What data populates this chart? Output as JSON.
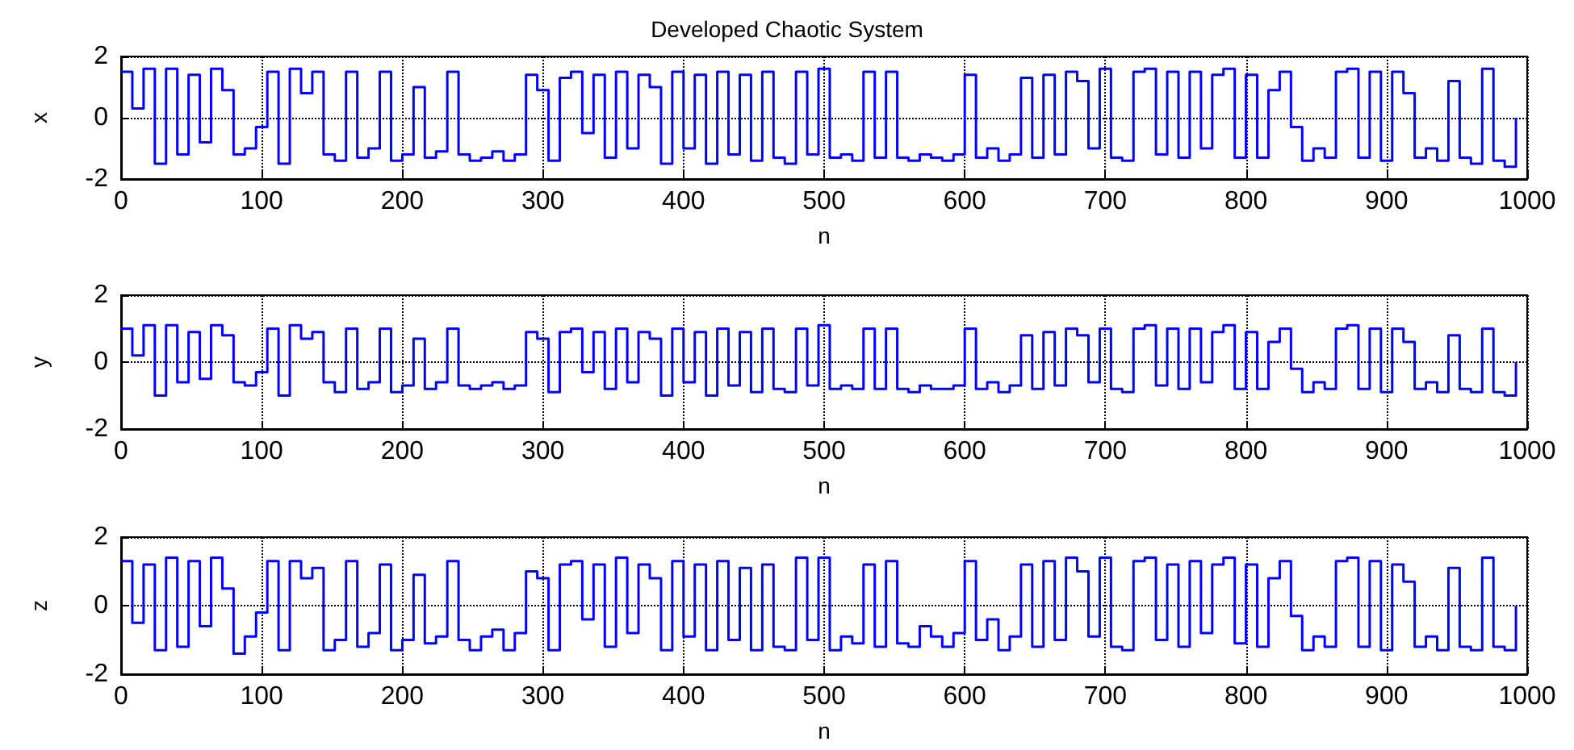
{
  "chart_data": [
    {
      "type": "step",
      "title": "Developed Chaotic System",
      "xlabel": "n",
      "ylabel": "x",
      "color": "#0000ff",
      "grid": true,
      "xlim": [
        0,
        1000
      ],
      "xticks": [
        0,
        100,
        200,
        300,
        400,
        500,
        600,
        700,
        800,
        900,
        1000
      ],
      "ylim": [
        -2,
        2
      ],
      "yticks": [
        -2,
        0,
        2
      ],
      "x": [
        0,
        8,
        16,
        24,
        32,
        40,
        48,
        56,
        64,
        72,
        80,
        88,
        96,
        104,
        112,
        120,
        128,
        136,
        144,
        152,
        160,
        168,
        176,
        184,
        192,
        200,
        208,
        216,
        224,
        232,
        240,
        248,
        256,
        264,
        272,
        280,
        288,
        296,
        304,
        312,
        320,
        328,
        336,
        344,
        352,
        360,
        368,
        376,
        384,
        392,
        400,
        408,
        416,
        424,
        432,
        440,
        448,
        456,
        464,
        472,
        480,
        488,
        496,
        504,
        512,
        520,
        528,
        536,
        544,
        552,
        560,
        568,
        576,
        584,
        592,
        600,
        608,
        616,
        624,
        632,
        640,
        648,
        656,
        664,
        672,
        680,
        688,
        696,
        704,
        712,
        720,
        728,
        736,
        744,
        752,
        760,
        768,
        776,
        784,
        792,
        800,
        808,
        816,
        824,
        832,
        840,
        848,
        856,
        864,
        872,
        880,
        888,
        896,
        904,
        912,
        920,
        928,
        936,
        944,
        952,
        960,
        968,
        976,
        984,
        992
      ],
      "values": [
        1.5,
        0.3,
        1.6,
        -1.5,
        1.6,
        -1.2,
        1.4,
        -0.8,
        1.6,
        0.9,
        -1.2,
        -1.0,
        -0.3,
        1.5,
        -1.5,
        1.6,
        0.8,
        1.5,
        -1.2,
        -1.4,
        1.5,
        -1.3,
        -1.0,
        1.5,
        -1.4,
        -1.2,
        1.0,
        -1.3,
        -1.1,
        1.5,
        -1.2,
        -1.4,
        -1.3,
        -1.1,
        -1.4,
        -1.2,
        1.4,
        0.9,
        -1.4,
        1.3,
        1.5,
        -0.5,
        1.4,
        -1.3,
        1.5,
        -1.0,
        1.4,
        1.0,
        -1.5,
        1.5,
        -1.0,
        1.4,
        -1.5,
        1.5,
        -1.2,
        1.4,
        -1.4,
        1.5,
        -1.3,
        -1.5,
        1.5,
        -1.2,
        1.6,
        -1.3,
        -1.2,
        -1.4,
        1.5,
        -1.3,
        1.5,
        -1.3,
        -1.4,
        -1.2,
        -1.3,
        -1.4,
        -1.2,
        1.4,
        -1.3,
        -1.0,
        -1.4,
        -1.2,
        1.3,
        -1.3,
        1.4,
        -1.2,
        1.5,
        1.2,
        -1.0,
        1.6,
        -1.3,
        -1.4,
        1.5,
        1.6,
        -1.2,
        1.5,
        -1.3,
        1.5,
        -1.0,
        1.4,
        1.6,
        -1.3,
        1.4,
        -1.3,
        0.9,
        1.5,
        -0.3,
        -1.4,
        -1.0,
        -1.3,
        1.5,
        1.6,
        -1.3,
        1.5,
        -1.4,
        1.5,
        0.8,
        -1.3,
        -1.0,
        -1.4,
        1.2,
        -1.3,
        -1.5,
        1.6,
        -1.4,
        -1.6,
        0.0
      ]
    },
    {
      "type": "step",
      "xlabel": "n",
      "ylabel": "y",
      "color": "#0000ff",
      "grid": true,
      "xlim": [
        0,
        1000
      ],
      "xticks": [
        0,
        100,
        200,
        300,
        400,
        500,
        600,
        700,
        800,
        900,
        1000
      ],
      "ylim": [
        -2,
        2
      ],
      "yticks": [
        -2,
        0,
        2
      ],
      "x": [
        0,
        8,
        16,
        24,
        32,
        40,
        48,
        56,
        64,
        72,
        80,
        88,
        96,
        104,
        112,
        120,
        128,
        136,
        144,
        152,
        160,
        168,
        176,
        184,
        192,
        200,
        208,
        216,
        224,
        232,
        240,
        248,
        256,
        264,
        272,
        280,
        288,
        296,
        304,
        312,
        320,
        328,
        336,
        344,
        352,
        360,
        368,
        376,
        384,
        392,
        400,
        408,
        416,
        424,
        432,
        440,
        448,
        456,
        464,
        472,
        480,
        488,
        496,
        504,
        512,
        520,
        528,
        536,
        544,
        552,
        560,
        568,
        576,
        584,
        592,
        600,
        608,
        616,
        624,
        632,
        640,
        648,
        656,
        664,
        672,
        680,
        688,
        696,
        704,
        712,
        720,
        728,
        736,
        744,
        752,
        760,
        768,
        776,
        784,
        792,
        800,
        808,
        816,
        824,
        832,
        840,
        848,
        856,
        864,
        872,
        880,
        888,
        896,
        904,
        912,
        920,
        928,
        936,
        944,
        952,
        960,
        968,
        976,
        984,
        992
      ],
      "values": [
        1.0,
        0.2,
        1.1,
        -1.0,
        1.1,
        -0.6,
        0.9,
        -0.5,
        1.1,
        0.8,
        -0.6,
        -0.7,
        -0.3,
        1.0,
        -1.0,
        1.1,
        0.7,
        0.9,
        -0.6,
        -0.9,
        1.0,
        -0.8,
        -0.6,
        1.0,
        -0.9,
        -0.7,
        0.7,
        -0.8,
        -0.6,
        1.0,
        -0.7,
        -0.8,
        -0.7,
        -0.6,
        -0.8,
        -0.7,
        0.9,
        0.7,
        -0.9,
        0.9,
        1.0,
        -0.3,
        0.9,
        -0.8,
        1.0,
        -0.6,
        0.9,
        0.7,
        -1.0,
        1.0,
        -0.6,
        0.9,
        -1.0,
        1.0,
        -0.7,
        0.9,
        -0.9,
        1.0,
        -0.8,
        -0.9,
        1.0,
        -0.7,
        1.1,
        -0.8,
        -0.7,
        -0.8,
        1.0,
        -0.8,
        1.0,
        -0.8,
        -0.9,
        -0.7,
        -0.8,
        -0.8,
        -0.7,
        1.0,
        -0.8,
        -0.6,
        -0.9,
        -0.7,
        0.8,
        -0.8,
        0.9,
        -0.7,
        1.0,
        0.8,
        -0.6,
        1.0,
        -0.8,
        -0.9,
        1.0,
        1.1,
        -0.7,
        1.0,
        -0.8,
        1.0,
        -0.6,
        0.9,
        1.1,
        -0.8,
        0.9,
        -0.8,
        0.6,
        1.0,
        -0.2,
        -0.9,
        -0.6,
        -0.8,
        1.0,
        1.1,
        -0.8,
        1.0,
        -0.9,
        1.0,
        0.6,
        -0.8,
        -0.6,
        -0.9,
        0.8,
        -0.8,
        -0.9,
        1.0,
        -0.9,
        -1.0,
        0.0
      ]
    },
    {
      "type": "step",
      "xlabel": "n",
      "ylabel": "z",
      "color": "#0000ff",
      "grid": true,
      "xlim": [
        0,
        1000
      ],
      "xticks": [
        0,
        100,
        200,
        300,
        400,
        500,
        600,
        700,
        800,
        900,
        1000
      ],
      "ylim": [
        -2,
        2
      ],
      "yticks": [
        -2,
        0,
        2
      ],
      "x": [
        0,
        8,
        16,
        24,
        32,
        40,
        48,
        56,
        64,
        72,
        80,
        88,
        96,
        104,
        112,
        120,
        128,
        136,
        144,
        152,
        160,
        168,
        176,
        184,
        192,
        200,
        208,
        216,
        224,
        232,
        240,
        248,
        256,
        264,
        272,
        280,
        288,
        296,
        304,
        312,
        320,
        328,
        336,
        344,
        352,
        360,
        368,
        376,
        384,
        392,
        400,
        408,
        416,
        424,
        432,
        440,
        448,
        456,
        464,
        472,
        480,
        488,
        496,
        504,
        512,
        520,
        528,
        536,
        544,
        552,
        560,
        568,
        576,
        584,
        592,
        600,
        608,
        616,
        624,
        632,
        640,
        648,
        656,
        664,
        672,
        680,
        688,
        696,
        704,
        712,
        720,
        728,
        736,
        744,
        752,
        760,
        768,
        776,
        784,
        792,
        800,
        808,
        816,
        824,
        832,
        840,
        848,
        856,
        864,
        872,
        880,
        888,
        896,
        904,
        912,
        920,
        928,
        936,
        944,
        952,
        960,
        968,
        976,
        984,
        992
      ],
      "values": [
        1.3,
        -0.5,
        1.2,
        -1.3,
        1.4,
        -1.2,
        1.3,
        -0.6,
        1.4,
        0.5,
        -1.4,
        -0.9,
        -0.2,
        1.3,
        -1.3,
        1.3,
        0.8,
        1.1,
        -1.3,
        -1.0,
        1.3,
        -1.2,
        -0.8,
        1.2,
        -1.3,
        -1.0,
        0.9,
        -1.1,
        -0.9,
        1.3,
        -1.0,
        -1.3,
        -0.9,
        -0.7,
        -1.3,
        -0.8,
        1.0,
        0.8,
        -1.3,
        1.2,
        1.3,
        -0.4,
        1.2,
        -1.2,
        1.4,
        -0.8,
        1.2,
        0.8,
        -1.3,
        1.3,
        -0.9,
        1.2,
        -1.3,
        1.3,
        -1.0,
        1.1,
        -1.3,
        1.2,
        -1.2,
        -1.3,
        1.4,
        -1.0,
        1.4,
        -1.3,
        -0.9,
        -1.1,
        1.2,
        -1.2,
        1.3,
        -1.1,
        -1.2,
        -0.6,
        -0.9,
        -1.2,
        -0.8,
        1.3,
        -1.0,
        -0.4,
        -1.3,
        -0.9,
        1.2,
        -1.2,
        1.3,
        -1.0,
        1.4,
        1.0,
        -0.9,
        1.4,
        -1.2,
        -1.3,
        1.3,
        1.4,
        -1.0,
        1.2,
        -1.2,
        1.3,
        -0.8,
        1.2,
        1.4,
        -1.1,
        1.2,
        -1.2,
        0.8,
        1.3,
        -0.3,
        -1.3,
        -0.9,
        -1.2,
        1.3,
        1.4,
        -1.2,
        1.3,
        -1.3,
        1.2,
        0.7,
        -1.2,
        -0.9,
        -1.3,
        1.1,
        -1.2,
        -1.3,
        1.4,
        -1.2,
        -1.3,
        0.0
      ]
    }
  ]
}
